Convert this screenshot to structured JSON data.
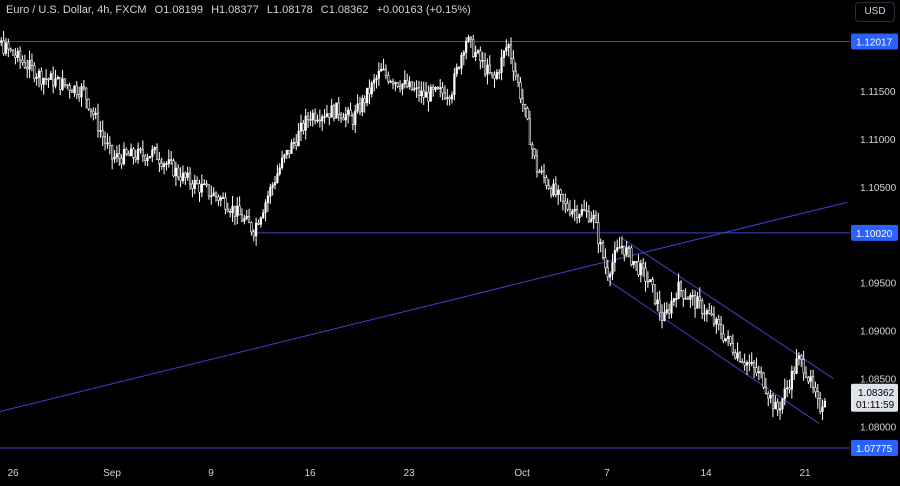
{
  "header": {
    "symbol": "Euro / U.S. Dollar, 4h, FXCM",
    "open": "O1.08199",
    "high": "H1.08377",
    "low": "L1.08178",
    "close": "C1.08362",
    "change": "+0.00163 (+0.15%)"
  },
  "currency_button": "USD",
  "colors": {
    "background": "#000000",
    "candle": "#ffffff",
    "line": "#3f43c8",
    "label_bg": "#2962ff",
    "axis_text": "#d1d4dc"
  },
  "chart_data": {
    "type": "candlestick",
    "x_axis": {
      "tick_labels": [
        "26",
        "Sep",
        "9",
        "16",
        "23",
        "Oct",
        "7",
        "14",
        "21"
      ]
    },
    "y_axis": {
      "range": [
        1.0765,
        1.1245
      ],
      "tick_labels": [
        "1.11500",
        "1.11000",
        "1.10500",
        "1.09500",
        "1.09000",
        "1.08500",
        "1.08000"
      ],
      "tick_values": [
        1.115,
        1.11,
        1.105,
        1.095,
        1.09,
        1.085,
        1.08
      ]
    },
    "price_levels": [
      {
        "label": "1.12017",
        "value": 1.12017
      },
      {
        "label": "1.10020",
        "value": 1.1002
      },
      {
        "label": "1.07775",
        "value": 1.07775
      }
    ],
    "current_price": {
      "label": "1.08362",
      "value": 1.08362,
      "countdown": "01:11:59"
    },
    "trend_lines": [
      {
        "kind": "rising-trendline",
        "from": {
          "date": "Aug 23",
          "price": 1.0808
        },
        "to": {
          "date": "Oct 24",
          "price": 1.1034
        }
      },
      {
        "kind": "channel-upper",
        "from": {
          "date": "Oct 8",
          "price": 1.0997
        },
        "to": {
          "date": "Oct 23",
          "price": 1.085
        }
      },
      {
        "kind": "channel-lower",
        "from": {
          "date": "Oct 7",
          "price": 1.0953
        },
        "to": {
          "date": "Oct 22",
          "price": 1.0803
        }
      }
    ],
    "path_points": [
      {
        "date": "Aug 23",
        "price": 1.112
      },
      {
        "date": "Aug 25",
        "price": 1.12
      },
      {
        "date": "Aug 28",
        "price": 1.1165
      },
      {
        "date": "Aug 31",
        "price": 1.115
      },
      {
        "date": "Sep 2",
        "price": 1.108
      },
      {
        "date": "Sep 5",
        "price": 1.1085
      },
      {
        "date": "Sep 7",
        "price": 1.106
      },
      {
        "date": "Sep 10",
        "price": 1.1035
      },
      {
        "date": "Sep 12",
        "price": 1.1005
      },
      {
        "date": "Sep 14",
        "price": 1.1075
      },
      {
        "date": "Sep 16",
        "price": 1.1125
      },
      {
        "date": "Sep 18",
        "price": 1.113
      },
      {
        "date": "Sep 19",
        "price": 1.112
      },
      {
        "date": "Sep 21",
        "price": 1.117
      },
      {
        "date": "Sep 24",
        "price": 1.1145
      },
      {
        "date": "Sep 26",
        "price": 1.115
      },
      {
        "date": "Sep 27",
        "price": 1.1205
      },
      {
        "date": "Sep 29",
        "price": 1.116
      },
      {
        "date": "Sep 30",
        "price": 1.12
      },
      {
        "date": "Oct 1",
        "price": 1.114
      },
      {
        "date": "Oct 2",
        "price": 1.107
      },
      {
        "date": "Oct 4",
        "price": 1.103
      },
      {
        "date": "Oct 6",
        "price": 1.102
      },
      {
        "date": "Oct 7",
        "price": 1.096
      },
      {
        "date": "Oct 8",
        "price": 1.099
      },
      {
        "date": "Oct 10",
        "price": 1.095
      },
      {
        "date": "Oct 11",
        "price": 1.091
      },
      {
        "date": "Oct 12",
        "price": 1.0945
      },
      {
        "date": "Oct 14",
        "price": 1.092
      },
      {
        "date": "Oct 16",
        "price": 1.088
      },
      {
        "date": "Oct 18",
        "price": 1.085
      },
      {
        "date": "Oct 19",
        "price": 1.0815
      },
      {
        "date": "Oct 20",
        "price": 1.085
      },
      {
        "date": "Oct 20.5",
        "price": 1.087
      },
      {
        "date": "Oct 21",
        "price": 1.0862
      },
      {
        "date": "Oct 22",
        "price": 1.0818
      },
      {
        "date": "Oct 22.5",
        "price": 1.0836
      }
    ]
  }
}
